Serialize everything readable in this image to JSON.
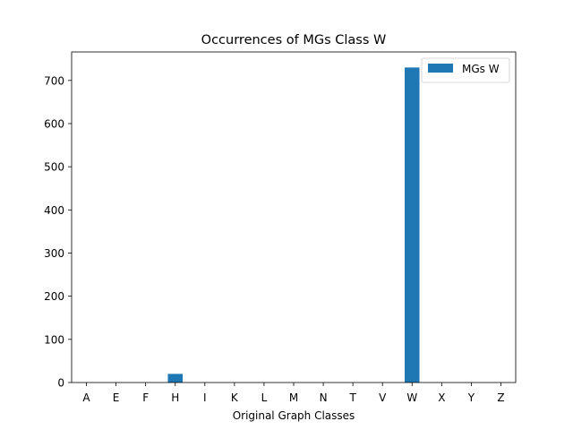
{
  "chart_data": {
    "type": "bar",
    "title": "Occurrences of MGs Class W",
    "xlabel": "Original Graph Classes",
    "ylabel": "",
    "categories": [
      "A",
      "E",
      "F",
      "H",
      "I",
      "K",
      "L",
      "M",
      "N",
      "T",
      "V",
      "W",
      "X",
      "Y",
      "Z"
    ],
    "series": [
      {
        "name": "MGs W",
        "values": [
          0,
          0,
          0,
          20,
          0,
          0,
          0,
          0,
          0,
          0,
          0,
          730,
          0,
          0,
          0
        ],
        "color": "#1f77b4"
      }
    ],
    "ylim": [
      0,
      766
    ],
    "yticks": [
      0,
      100,
      200,
      300,
      400,
      500,
      600,
      700
    ],
    "grid": false,
    "legend_position": "top-right"
  }
}
